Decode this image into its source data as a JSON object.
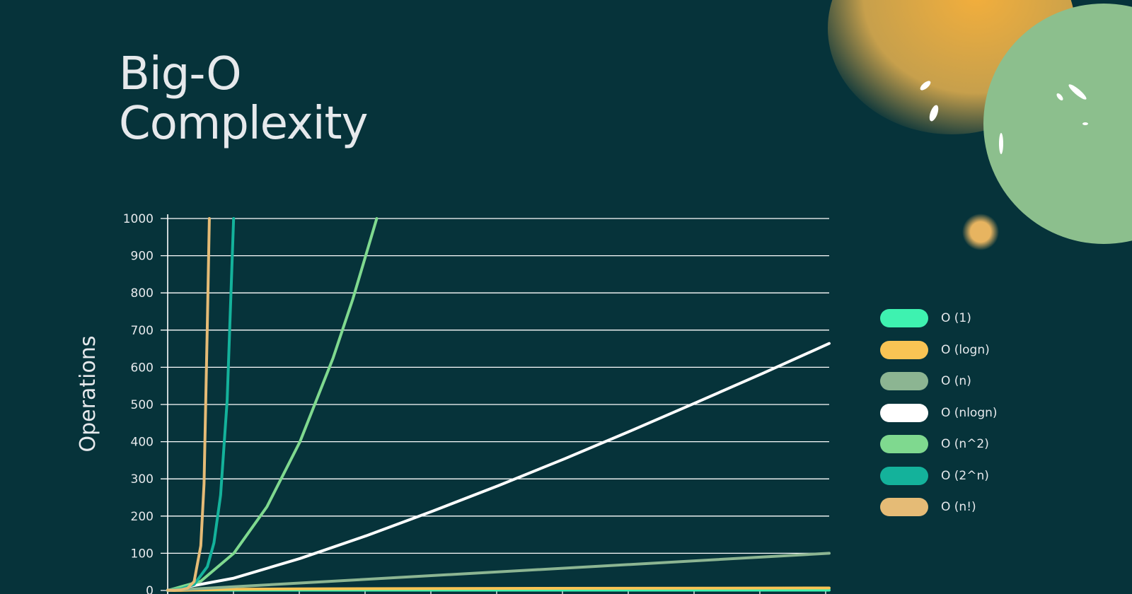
{
  "title_line1": "Big-O",
  "title_line2": "Complexity",
  "chart_data": {
    "type": "line",
    "title": "Big-O Complexity",
    "ylabel": "Operations",
    "xlabel": "",
    "ylim": [
      0,
      1000
    ],
    "yticks": [
      0,
      100,
      200,
      300,
      400,
      500,
      600,
      700,
      800,
      900,
      1000
    ],
    "xlim": [
      0,
      100
    ],
    "grid": true,
    "legend_position": "right",
    "series": [
      {
        "name": "O (1)",
        "color": "#3ef2b0",
        "points": [
          [
            0,
            1
          ],
          [
            100,
            1
          ]
        ]
      },
      {
        "name": "O (logn)",
        "color": "#f9c454",
        "points": [
          [
            0,
            0
          ],
          [
            1,
            0
          ],
          [
            10,
            3.3
          ],
          [
            20,
            4.3
          ],
          [
            50,
            5.6
          ],
          [
            100,
            6.6
          ]
        ]
      },
      {
        "name": "O (n)",
        "color": "#8cb592",
        "points": [
          [
            0,
            0
          ],
          [
            100,
            100
          ]
        ]
      },
      {
        "name": "O (nlogn)",
        "color": "#ffffff",
        "points": [
          [
            0,
            0
          ],
          [
            10,
            33
          ],
          [
            20,
            86
          ],
          [
            30,
            147
          ],
          [
            40,
            213
          ],
          [
            50,
            282
          ],
          [
            60,
            354
          ],
          [
            70,
            429
          ],
          [
            80,
            506
          ],
          [
            90,
            584
          ],
          [
            100,
            664
          ]
        ]
      },
      {
        "name": "O (n^2)",
        "color": "#7fd98f",
        "points": [
          [
            0,
            0
          ],
          [
            5,
            25
          ],
          [
            10,
            100
          ],
          [
            15,
            225
          ],
          [
            20,
            400
          ],
          [
            25,
            625
          ],
          [
            28,
            784
          ],
          [
            31.6,
            1000
          ]
        ]
      },
      {
        "name": "O (2^n)",
        "color": "#14b29b",
        "points": [
          [
            0,
            1
          ],
          [
            2,
            4
          ],
          [
            4,
            16
          ],
          [
            6,
            64
          ],
          [
            7,
            128
          ],
          [
            8,
            256
          ],
          [
            9,
            512
          ],
          [
            9.97,
            1000
          ]
        ]
      },
      {
        "name": "O (n!)",
        "color": "#e5bb76",
        "points": [
          [
            0,
            1
          ],
          [
            1,
            1
          ],
          [
            2,
            2
          ],
          [
            3,
            6
          ],
          [
            4,
            24
          ],
          [
            5,
            120
          ],
          [
            5.5,
            287
          ],
          [
            6,
            720
          ],
          [
            6.3,
            1000
          ]
        ]
      }
    ]
  }
}
